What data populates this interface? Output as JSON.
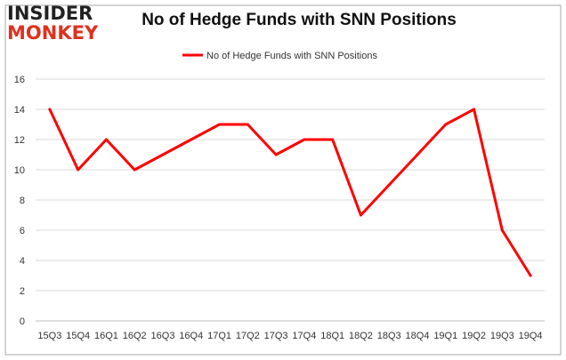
{
  "brand": {
    "line1": "INSIDER",
    "line2": "MONKEY"
  },
  "colors": {
    "series": "#ff0000",
    "logo_accent": "#e0301e",
    "grid": "#d9d9d9",
    "frame": "#aaaaaa"
  },
  "chart_data": {
    "type": "line",
    "title": "No of Hedge Funds with SNN Positions",
    "xlabel": "",
    "ylabel": "",
    "categories": [
      "15Q3",
      "15Q4",
      "16Q1",
      "16Q2",
      "16Q3",
      "16Q4",
      "17Q1",
      "17Q2",
      "17Q3",
      "17Q4",
      "18Q1",
      "18Q2",
      "18Q3",
      "18Q4",
      "19Q1",
      "19Q2",
      "19Q3",
      "19Q4"
    ],
    "series": [
      {
        "name": "No of Hedge Funds with SNN Positions",
        "values": [
          14,
          10,
          12,
          10,
          11,
          12,
          13,
          13,
          11,
          12,
          12,
          7,
          9,
          11,
          13,
          14,
          6,
          3
        ]
      }
    ],
    "ylim": [
      0,
      16
    ],
    "yticks": [
      0,
      2,
      4,
      6,
      8,
      10,
      12,
      14,
      16
    ],
    "grid": true,
    "legend": "top-center"
  }
}
